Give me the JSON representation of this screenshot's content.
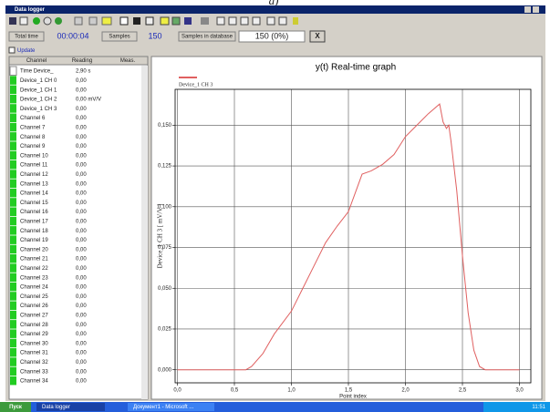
{
  "caption": "a)",
  "window": {
    "title": "Data logger"
  },
  "toolbar": {
    "total_time_label": "Total time",
    "total_time": "00:00:04",
    "samples_label": "Samples",
    "samples": "150",
    "db_label": "Samples in database",
    "db_value": "150 (0%)",
    "clear": "X"
  },
  "update": "Update",
  "table": {
    "header": [
      "Channel",
      "Reading",
      "Meas."
    ],
    "rows": [
      [
        "Time Device_",
        "2,90 s"
      ],
      [
        "Device_1 CH 0",
        "0,00"
      ],
      [
        "Device_1 CH 1",
        "0,00"
      ],
      [
        "Device_1 CH 2",
        "0,00 mV/V"
      ],
      [
        "Device_1 CH 3",
        "0,00"
      ],
      [
        "Channel 6",
        "0,00"
      ],
      [
        "Channel 7",
        "0,00"
      ],
      [
        "Channel 8",
        "0,00"
      ],
      [
        "Channel 9",
        "0,00"
      ],
      [
        "Channel 10",
        "0,00"
      ],
      [
        "Channel 11",
        "0,00"
      ],
      [
        "Channel 12",
        "0,00"
      ],
      [
        "Channel 13",
        "0,00"
      ],
      [
        "Channel 14",
        "0,00"
      ],
      [
        "Channel 15",
        "0,00"
      ],
      [
        "Channel 16",
        "0,00"
      ],
      [
        "Channel 17",
        "0,00"
      ],
      [
        "Channel 18",
        "0,00"
      ],
      [
        "Channel 19",
        "0,00"
      ],
      [
        "Channel 20",
        "0,00"
      ],
      [
        "Channel 21",
        "0,00"
      ],
      [
        "Channel 22",
        "0,00"
      ],
      [
        "Channel 23",
        "0,00"
      ],
      [
        "Channel 24",
        "0,00"
      ],
      [
        "Channel 25",
        "0,00"
      ],
      [
        "Channel 26",
        "0,00"
      ],
      [
        "Channel 27",
        "0,00"
      ],
      [
        "Channel 28",
        "0,00"
      ],
      [
        "Channel 29",
        "0,00"
      ],
      [
        "Channel 30",
        "0,00"
      ],
      [
        "Channel 31",
        "0,00"
      ],
      [
        "Channel 32",
        "0,00"
      ],
      [
        "Channel 33",
        "0,00"
      ],
      [
        "Channel 34",
        "0,00"
      ]
    ]
  },
  "chart_data": {
    "type": "line",
    "title": "y(t) Real-time graph",
    "x_label": "Point index",
    "y_label": "Device_1 CH 3 [ mV/V ]",
    "x": [
      0,
      0.3,
      0.6,
      0.65,
      0.75,
      0.85,
      1.0,
      1.1,
      1.2,
      1.3,
      1.4,
      1.5,
      1.62,
      1.7,
      1.8,
      1.9,
      2.0,
      2.1,
      2.2,
      2.3,
      2.33,
      2.36,
      2.38,
      2.4,
      2.45,
      2.5,
      2.55,
      2.6,
      2.65,
      2.7,
      3.0
    ],
    "series": [
      {
        "name": "Device_1 CH 3",
        "color": "#e06060",
        "values": [
          0,
          0,
          0,
          0.002,
          0.01,
          0.022,
          0.036,
          0.05,
          0.064,
          0.078,
          0.088,
          0.097,
          0.12,
          0.122,
          0.126,
          0.132,
          0.143,
          0.15,
          0.157,
          0.163,
          0.152,
          0.148,
          0.15,
          0.14,
          0.11,
          0.07,
          0.035,
          0.012,
          0.002,
          0,
          0
        ]
      }
    ],
    "xlim": [
      -0.02,
      3.1
    ],
    "ylim": [
      -0.008,
      0.172
    ],
    "xticks": [
      {
        "value": 0,
        "label": "0,0"
      },
      {
        "value": 0.5,
        "label": "0,5"
      },
      {
        "value": 1,
        "label": "1,0"
      },
      {
        "value": 1.5,
        "label": "1,5"
      },
      {
        "value": 2,
        "label": "2,0"
      },
      {
        "value": 2.5,
        "label": "2,5"
      },
      {
        "value": 3,
        "label": "3,0"
      }
    ],
    "yticks": [
      {
        "value": 0,
        "label": "0,000"
      },
      {
        "value": 0.025,
        "label": "0,025"
      },
      {
        "value": 0.05,
        "label": "0,050"
      },
      {
        "value": 0.075,
        "label": "0,075"
      },
      {
        "value": 0.1,
        "label": "0,100"
      },
      {
        "value": 0.125,
        "label": "0,125"
      },
      {
        "value": 0.15,
        "label": "0,150"
      }
    ],
    "grid": true
  },
  "taskbar": {
    "start": "Пуск",
    "task1": "Data logger",
    "task2": "Документ1 - Microsoft ...",
    "clock": "11:51"
  }
}
